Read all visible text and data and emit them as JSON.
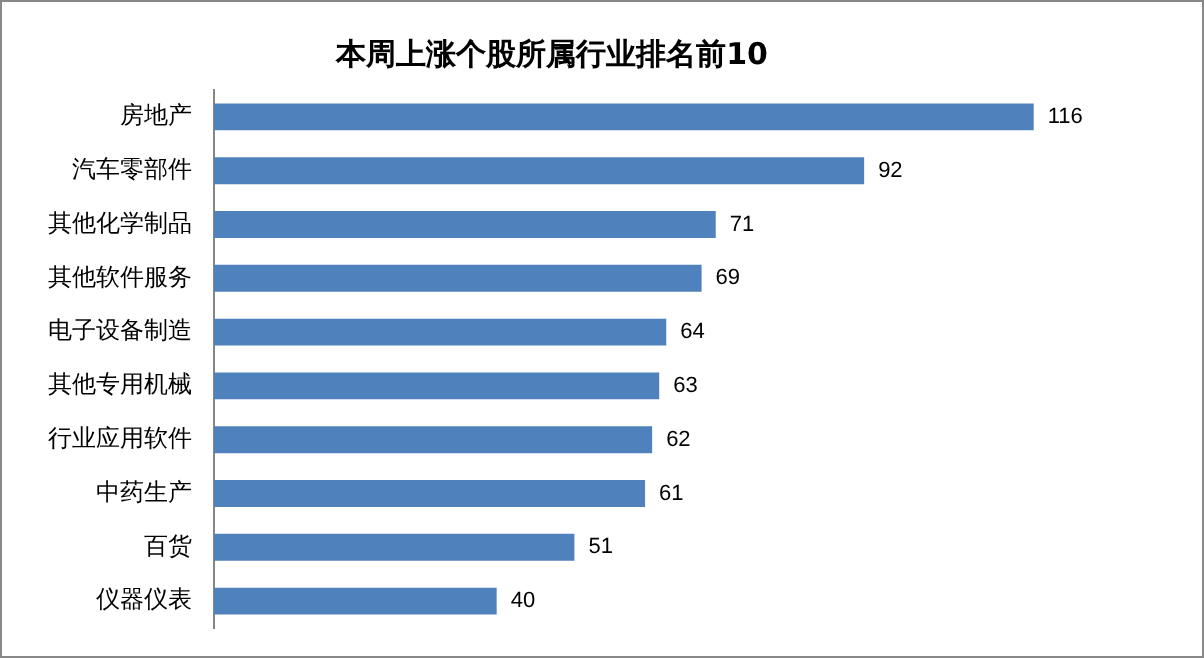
{
  "chart_data": {
    "type": "bar",
    "orientation": "horizontal",
    "title": "本周上涨个股所属行业排名前10",
    "categories": [
      "房地产",
      "汽车零部件",
      "其他化学制品",
      "其他软件服务",
      "电子设备制造",
      "其他专用机械",
      "行业应用软件",
      "中药生产",
      "百货",
      "仪器仪表"
    ],
    "values": [
      116,
      92,
      71,
      69,
      64,
      63,
      62,
      61,
      51,
      40
    ],
    "color": "#4f81bd",
    "data_labels": true
  }
}
